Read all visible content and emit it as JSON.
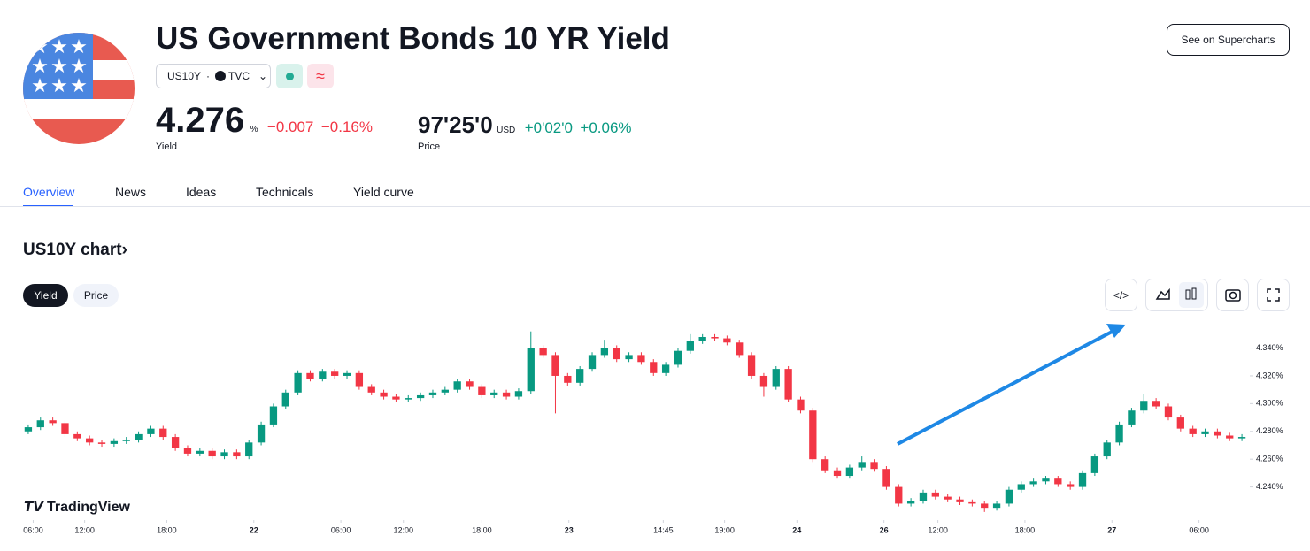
{
  "header": {
    "title": "US Government Bonds 10 YR Yield",
    "symbol": "US10Y",
    "exchange": "TVC",
    "yield": "4.276",
    "yield_unit": "%",
    "yield_change": "−0.007",
    "yield_change_pct": "−0.16%",
    "yield_label": "Yield",
    "price": "97'25'0",
    "price_unit": "USD",
    "price_change": "+0'02'0",
    "price_change_pct": "+0.06%",
    "price_label": "Price",
    "button": "See on Supercharts"
  },
  "tabs": [
    "Overview",
    "News",
    "Ideas",
    "Technicals",
    "Yield curve"
  ],
  "chart_section": {
    "title": "US10Y chart›",
    "toggles": [
      "Yield",
      "Price"
    ],
    "watermark": "TradingView"
  },
  "chart_data": {
    "type": "candlestick",
    "up_color": "#089981",
    "down_color": "#f23645",
    "xlim": [
      -0.5,
      99.5
    ],
    "xticks": [
      {
        "value": 0.4,
        "label": "06:00"
      },
      {
        "value": 4.6,
        "label": "12:00"
      },
      {
        "value": 11.3,
        "label": "18:00"
      },
      {
        "value": 18.4,
        "label": "22"
      },
      {
        "value": 25.5,
        "label": "06:00"
      },
      {
        "value": 30.6,
        "label": "12:00"
      },
      {
        "value": 37.0,
        "label": "18:00"
      },
      {
        "value": 44.1,
        "label": "23"
      },
      {
        "value": 51.8,
        "label": "14:45"
      },
      {
        "value": 56.8,
        "label": "19:00"
      },
      {
        "value": 62.7,
        "label": "24"
      },
      {
        "value": 69.8,
        "label": "26"
      },
      {
        "value": 74.2,
        "label": "12:00"
      },
      {
        "value": 81.3,
        "label": "18:00"
      },
      {
        "value": 88.4,
        "label": "27"
      },
      {
        "value": 95.5,
        "label": "06:00"
      }
    ],
    "ylim": [
      4.22,
      4.355
    ],
    "yticks": [
      {
        "value": 4.24,
        "label": "4.240%"
      },
      {
        "value": 4.26,
        "label": "4.260%"
      },
      {
        "value": 4.28,
        "label": "4.280%"
      },
      {
        "value": 4.3,
        "label": "4.300%"
      },
      {
        "value": 4.32,
        "label": "4.320%"
      },
      {
        "value": 4.34,
        "label": "4.340%"
      }
    ],
    "open": [
      4.28,
      4.283,
      4.288,
      4.286,
      4.278,
      4.275,
      4.272,
      4.271,
      4.273,
      4.274,
      4.278,
      4.282,
      4.276,
      4.268,
      4.264,
      4.266,
      4.262,
      4.265,
      4.262,
      4.272,
      4.285,
      4.298,
      4.308,
      4.322,
      4.318,
      4.323,
      4.32,
      4.322,
      4.312,
      4.308,
      4.305,
      4.303,
      4.304,
      4.306,
      4.308,
      4.31,
      4.316,
      4.312,
      4.306,
      4.308,
      4.305,
      4.309,
      4.34,
      4.335,
      4.32,
      4.315,
      4.325,
      4.335,
      4.34,
      4.332,
      4.335,
      4.33,
      4.322,
      4.328,
      4.338,
      4.345,
      4.348,
      4.347,
      4.344,
      4.335,
      4.32,
      4.312,
      4.325,
      4.303,
      4.295,
      4.26,
      4.252,
      4.248,
      4.254,
      4.258,
      4.253,
      4.24,
      4.228,
      4.23,
      4.236,
      4.233,
      4.231,
      4.229,
      4.228,
      4.225,
      4.228,
      4.238,
      4.242,
      4.244,
      4.246,
      4.242,
      4.24,
      4.25,
      4.262,
      4.272,
      4.285,
      4.295,
      4.302,
      4.298,
      4.29,
      4.282,
      4.278,
      4.28,
      4.277,
      4.275
    ],
    "high": [
      4.285,
      4.29,
      4.29,
      4.288,
      4.28,
      4.277,
      4.274,
      4.275,
      4.276,
      4.28,
      4.284,
      4.284,
      4.278,
      4.27,
      4.268,
      4.268,
      4.267,
      4.267,
      4.274,
      4.287,
      4.3,
      4.31,
      4.324,
      4.324,
      4.325,
      4.325,
      4.324,
      4.324,
      4.314,
      4.31,
      4.307,
      4.306,
      4.308,
      4.31,
      4.312,
      4.318,
      4.318,
      4.314,
      4.31,
      4.31,
      4.311,
      4.352,
      4.342,
      4.337,
      4.322,
      4.327,
      4.337,
      4.346,
      4.342,
      4.337,
      4.337,
      4.332,
      4.33,
      4.34,
      4.35,
      4.35,
      4.35,
      4.349,
      4.346,
      4.337,
      4.322,
      4.327,
      4.327,
      4.305,
      4.297,
      4.262,
      4.254,
      4.256,
      4.262,
      4.26,
      4.255,
      4.242,
      4.232,
      4.238,
      4.238,
      4.235,
      4.233,
      4.231,
      4.23,
      4.23,
      4.24,
      4.244,
      4.246,
      4.248,
      4.248,
      4.244,
      4.252,
      4.264,
      4.274,
      4.287,
      4.297,
      4.307,
      4.304,
      4.3,
      4.292,
      4.284,
      4.282,
      4.282,
      4.279,
      4.278
    ],
    "low": [
      4.278,
      4.281,
      4.284,
      4.276,
      4.273,
      4.27,
      4.269,
      4.269,
      4.271,
      4.272,
      4.276,
      4.274,
      4.266,
      4.262,
      4.262,
      4.26,
      4.26,
      4.26,
      4.26,
      4.27,
      4.283,
      4.296,
      4.306,
      4.316,
      4.316,
      4.318,
      4.318,
      4.31,
      4.306,
      4.303,
      4.301,
      4.301,
      4.302,
      4.304,
      4.306,
      4.308,
      4.31,
      4.304,
      4.304,
      4.303,
      4.303,
      4.307,
      4.333,
      4.293,
      4.313,
      4.313,
      4.323,
      4.333,
      4.33,
      4.33,
      4.328,
      4.32,
      4.32,
      4.326,
      4.336,
      4.343,
      4.345,
      4.342,
      4.333,
      4.318,
      4.305,
      4.31,
      4.301,
      4.293,
      4.258,
      4.25,
      4.246,
      4.246,
      4.252,
      4.251,
      4.238,
      4.226,
      4.226,
      4.228,
      4.231,
      4.229,
      4.227,
      4.226,
      4.222,
      4.223,
      4.226,
      4.236,
      4.24,
      4.242,
      4.24,
      4.238,
      4.238,
      4.248,
      4.26,
      4.27,
      4.283,
      4.293,
      4.296,
      4.288,
      4.28,
      4.276,
      4.276,
      4.275,
      4.273,
      4.273
    ],
    "close": [
      4.283,
      4.288,
      4.286,
      4.278,
      4.275,
      4.272,
      4.271,
      4.273,
      4.274,
      4.278,
      4.282,
      4.276,
      4.268,
      4.264,
      4.266,
      4.262,
      4.265,
      4.262,
      4.272,
      4.285,
      4.298,
      4.308,
      4.322,
      4.318,
      4.323,
      4.32,
      4.322,
      4.312,
      4.308,
      4.305,
      4.303,
      4.304,
      4.306,
      4.308,
      4.31,
      4.316,
      4.312,
      4.306,
      4.308,
      4.305,
      4.309,
      4.34,
      4.335,
      4.32,
      4.315,
      4.325,
      4.335,
      4.34,
      4.332,
      4.335,
      4.33,
      4.322,
      4.328,
      4.338,
      4.345,
      4.348,
      4.347,
      4.344,
      4.335,
      4.32,
      4.312,
      4.325,
      4.303,
      4.295,
      4.26,
      4.252,
      4.248,
      4.254,
      4.258,
      4.253,
      4.24,
      4.228,
      4.23,
      4.236,
      4.233,
      4.231,
      4.229,
      4.228,
      4.225,
      4.228,
      4.238,
      4.242,
      4.244,
      4.246,
      4.242,
      4.24,
      4.25,
      4.262,
      4.272,
      4.285,
      4.295,
      4.302,
      4.298,
      4.29,
      4.282,
      4.278,
      4.28,
      4.277,
      4.275,
      4.276
    ]
  }
}
